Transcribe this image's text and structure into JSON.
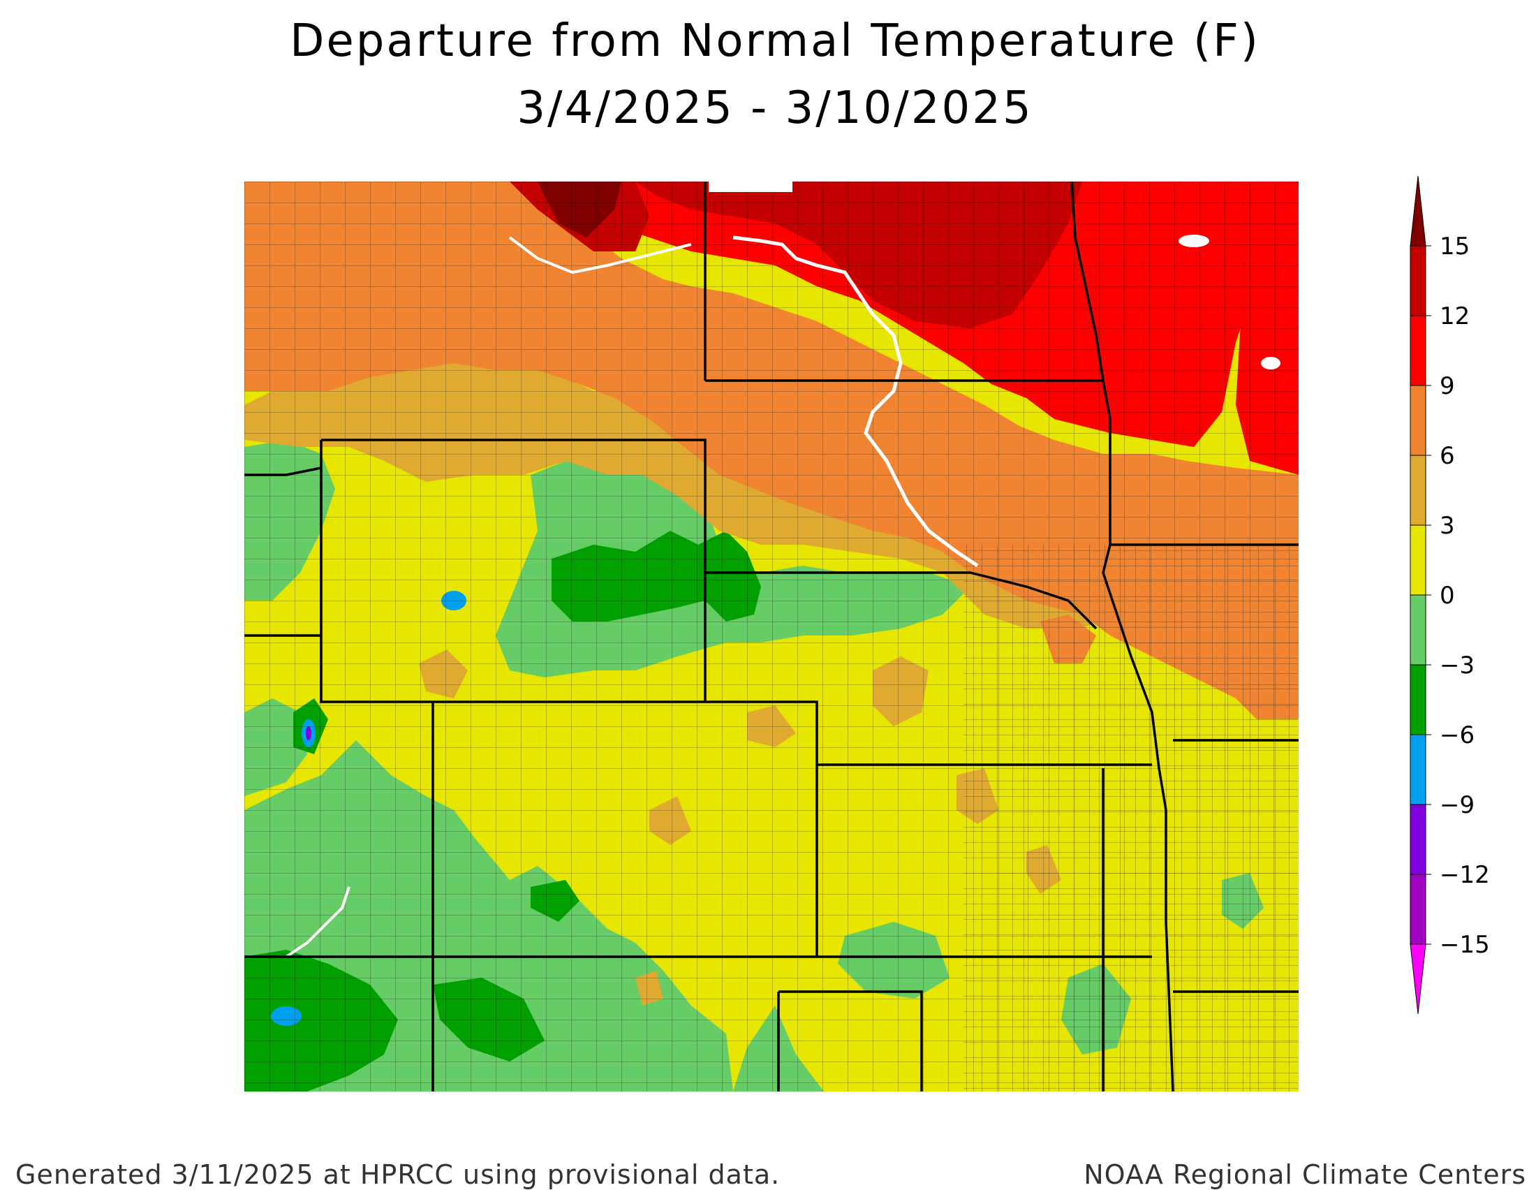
{
  "title": {
    "line1": "Departure from Normal Temperature (F)",
    "line2": "3/4/2025 - 3/10/2025"
  },
  "legend": {
    "unit": "F",
    "labels": [
      "15",
      "12",
      "9",
      "6",
      "3",
      "0",
      "−3",
      "−6",
      "−9",
      "−12",
      "−15"
    ],
    "bins": [
      {
        "range": "above 15",
        "color": "#800000"
      },
      {
        "range": "12 to 15",
        "color": "#c40000"
      },
      {
        "range": "9 to 12",
        "color": "#ff0000"
      },
      {
        "range": "6 to 9",
        "color": "#f08430"
      },
      {
        "range": "3 to 6",
        "color": "#e0aa30"
      },
      {
        "range": "0 to 3",
        "color": "#e6e600"
      },
      {
        "range": "-3 to 0",
        "color": "#66cc66"
      },
      {
        "range": "-6 to -3",
        "color": "#00a000"
      },
      {
        "range": "-9 to -6",
        "color": "#00a0f0"
      },
      {
        "range": "-12 to -9",
        "color": "#8000e0"
      },
      {
        "range": "-15 to -12",
        "color": "#a000c0"
      },
      {
        "range": "below -15",
        "color": "#ff00ff"
      }
    ]
  },
  "footer": {
    "left": "Generated 3/11/2025 at HPRCC using provisional data.",
    "right": "NOAA Regional Climate Centers"
  }
}
